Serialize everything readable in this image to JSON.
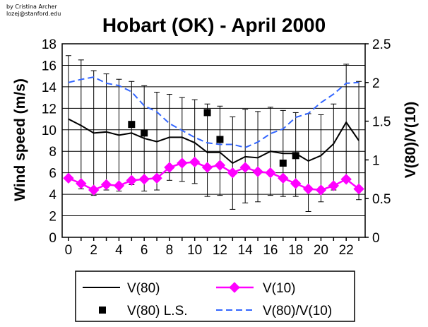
{
  "credit": {
    "line1": "by Cristina Archer",
    "line2": "lozej@stanford.edu"
  },
  "chart_data": {
    "type": "line",
    "title": "Hobart (OK) - April 2000",
    "xlabel": "",
    "ylabel": "Wind speed (m/s)",
    "y2label": "V(80)/V(10)",
    "xlim": [
      -0.5,
      23.5
    ],
    "ylim": [
      0,
      18
    ],
    "y2lim": [
      0,
      2.5
    ],
    "x": [
      0,
      1,
      2,
      3,
      4,
      5,
      6,
      7,
      8,
      9,
      10,
      11,
      12,
      13,
      14,
      15,
      16,
      17,
      18,
      19,
      20,
      21,
      22,
      23
    ],
    "x_ticks": [
      0,
      2,
      4,
      6,
      8,
      10,
      12,
      14,
      16,
      18,
      20,
      22
    ],
    "y_ticks": [
      0,
      2,
      4,
      6,
      8,
      10,
      12,
      14,
      16,
      18
    ],
    "y2_ticks": [
      0,
      0.5,
      1,
      1.5,
      2,
      2.5
    ],
    "y2_tick_labels": [
      "0",
      "0.5",
      "1",
      "1.5",
      "2",
      "2.5"
    ],
    "grid": true,
    "legend_position": "bottom",
    "series": [
      {
        "name": "V(80)",
        "axis": "left",
        "style": "solid-line",
        "color": "#000000",
        "values": [
          11.0,
          10.4,
          9.7,
          9.8,
          9.5,
          9.7,
          9.2,
          8.9,
          9.3,
          9.3,
          8.8,
          7.9,
          7.9,
          6.9,
          7.5,
          7.4,
          8.0,
          7.8,
          7.8,
          7.1,
          7.6,
          8.7,
          10.7,
          9.0
        ],
        "error_high": [
          16.9,
          16.5,
          15.5,
          15.2,
          14.7,
          14.5,
          14.1,
          13.5,
          13.3,
          13.0,
          12.8,
          12.4,
          12.2,
          11.2,
          11.9,
          11.7,
          12.1,
          11.8,
          11.6,
          11.5,
          11.4,
          12.4,
          16.1,
          14.5
        ],
        "error_low": [
          5.4,
          4.5,
          3.9,
          4.4,
          4.3,
          4.9,
          4.3,
          4.4,
          5.3,
          5.2,
          5.0,
          3.8,
          3.9,
          2.6,
          3.2,
          3.3,
          3.9,
          3.8,
          3.8,
          2.4,
          3.3,
          4.4,
          5.4,
          3.5
        ]
      },
      {
        "name": "V(10)",
        "axis": "left",
        "style": "line-with-diamonds",
        "color": "#ff00ff",
        "values": [
          5.5,
          5.0,
          4.4,
          4.9,
          4.8,
          5.3,
          5.4,
          5.5,
          6.5,
          6.9,
          7.0,
          6.5,
          6.7,
          6.0,
          6.5,
          6.1,
          6.0,
          5.5,
          5.0,
          4.5,
          4.4,
          4.8,
          5.4,
          4.5
        ]
      },
      {
        "name": "V(80) L.S.",
        "axis": "left",
        "style": "squares",
        "color": "#000000",
        "x": [
          5,
          6,
          11,
          12,
          17,
          18
        ],
        "values": [
          10.5,
          9.7,
          11.6,
          9.1,
          6.9,
          7.6
        ]
      },
      {
        "name": "V(80)/V(10)",
        "axis": "right",
        "style": "dashed-line",
        "color": "#3366ff",
        "values": [
          2.0,
          2.04,
          2.07,
          1.99,
          1.96,
          1.88,
          1.7,
          1.62,
          1.47,
          1.38,
          1.29,
          1.22,
          1.2,
          1.2,
          1.16,
          1.23,
          1.34,
          1.4,
          1.55,
          1.6,
          1.74,
          1.85,
          1.99,
          2.0
        ]
      }
    ]
  }
}
